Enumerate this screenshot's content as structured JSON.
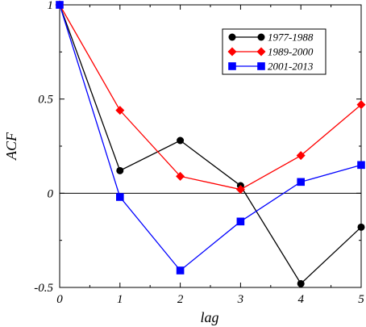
{
  "chart_data": {
    "type": "line",
    "title": "",
    "xlabel": "lag",
    "ylabel": "ACF",
    "x": [
      0,
      1,
      2,
      3,
      4,
      5
    ],
    "xlim": [
      0,
      5
    ],
    "ylim": [
      -0.5,
      1
    ],
    "x_ticks": [
      "0",
      "1",
      "2",
      "3",
      "4",
      "5"
    ],
    "y_ticks": [
      {
        "value": 1,
        "label": "1"
      },
      {
        "value": 0.5,
        "label": "0.5"
      },
      {
        "value": 0,
        "label": "0"
      },
      {
        "value": -0.5,
        "label": "-0.5"
      }
    ],
    "zero_line": true,
    "grid": false,
    "legend_position": "top-right",
    "series": [
      {
        "name": "1977-1988",
        "color": "#000000",
        "marker": "circle",
        "values": [
          1,
          0.12,
          0.28,
          0.04,
          -0.48,
          -0.18
        ]
      },
      {
        "name": "1989-2000",
        "color": "#ff0000",
        "marker": "diamond",
        "values": [
          1,
          0.44,
          0.09,
          0.02,
          0.2,
          0.47
        ]
      },
      {
        "name": "2001-2013",
        "color": "#0000ff",
        "marker": "square",
        "values": [
          1,
          -0.02,
          -0.41,
          -0.15,
          0.06,
          0.15
        ]
      }
    ]
  }
}
